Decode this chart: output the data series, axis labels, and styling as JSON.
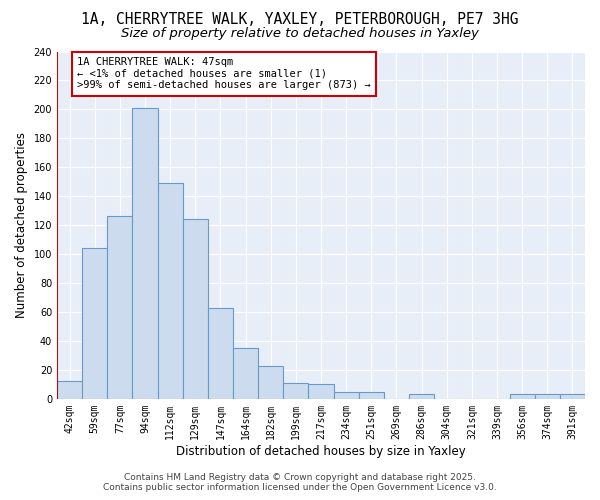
{
  "title_line1": "1A, CHERRYTREE WALK, YAXLEY, PETERBOROUGH, PE7 3HG",
  "title_line2": "Size of property relative to detached houses in Yaxley",
  "xlabel": "Distribution of detached houses by size in Yaxley",
  "ylabel": "Number of detached properties",
  "bin_labels": [
    "42sqm",
    "59sqm",
    "77sqm",
    "94sqm",
    "112sqm",
    "129sqm",
    "147sqm",
    "164sqm",
    "182sqm",
    "199sqm",
    "217sqm",
    "234sqm",
    "251sqm",
    "269sqm",
    "286sqm",
    "304sqm",
    "321sqm",
    "339sqm",
    "356sqm",
    "374sqm",
    "391sqm"
  ],
  "bar_heights": [
    12,
    104,
    126,
    201,
    149,
    124,
    63,
    35,
    23,
    11,
    10,
    5,
    5,
    0,
    3,
    0,
    0,
    0,
    3,
    3,
    3
  ],
  "bar_color": "#ccdcee",
  "bar_edge_color": "#6699cc",
  "background_color": "#e8eef8",
  "grid_color": "#ffffff",
  "annotation_line1": "1A CHERRYTREE WALK: 47sqm",
  "annotation_line2": "← <1% of detached houses are smaller (1)",
  "annotation_line3": ">99% of semi-detached houses are larger (873) →",
  "annotation_box_edge_color": "#cc0000",
  "ylim": [
    0,
    240
  ],
  "yticks": [
    0,
    20,
    40,
    60,
    80,
    100,
    120,
    140,
    160,
    180,
    200,
    220,
    240
  ],
  "footer_text": "Contains HM Land Registry data © Crown copyright and database right 2025.\nContains public sector information licensed under the Open Government Licence v3.0.",
  "title_fontsize": 10.5,
  "subtitle_fontsize": 9.5,
  "tick_fontsize": 7,
  "ylabel_fontsize": 8.5,
  "xlabel_fontsize": 8.5,
  "annotation_fontsize": 7.5,
  "footer_fontsize": 6.5
}
